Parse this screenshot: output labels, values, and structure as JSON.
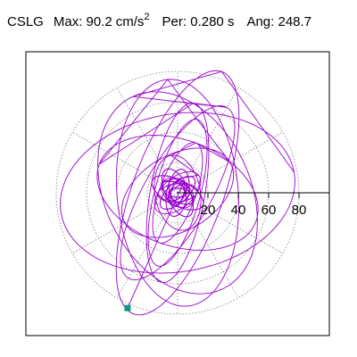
{
  "header": {
    "station": "CSLG",
    "max_label": "Max:",
    "max_value": "90.2",
    "max_unit": "cm/s",
    "max_unit_exp": "2",
    "per_label": "Per:",
    "per_value": "0.280 s",
    "ang_label": "Ang:",
    "ang_value": "248.7"
  },
  "colors": {
    "trace": "#9900cc",
    "grid": "#808080",
    "frame": "#000000",
    "end_marker": "#109980"
  },
  "chart_data": {
    "type": "line",
    "title": "",
    "xlabel": "",
    "ylabel": "",
    "radial_ticks": [
      "20",
      "40",
      "60",
      "80"
    ],
    "radial_tick_values": [
      20,
      40,
      60,
      80
    ],
    "grid": "polar-dotted",
    "xlim": [
      -95,
      95
    ],
    "ylim": [
      -95,
      95
    ],
    "max_amplitude": 90.2,
    "max_angle_deg": 248.7,
    "orbit_ellipses": [
      {
        "semi_a": 78,
        "semi_b": 52,
        "angle_deg": 10
      },
      {
        "semi_a": 85,
        "semi_b": 30,
        "angle_deg": 70
      },
      {
        "semi_a": 70,
        "semi_b": 48,
        "angle_deg": 115
      },
      {
        "semi_a": 65,
        "semi_b": 22,
        "angle_deg": 60
      },
      {
        "semi_a": 60,
        "semi_b": 18,
        "angle_deg": 80
      },
      {
        "semi_a": 55,
        "semi_b": 35,
        "angle_deg": 160
      },
      {
        "semi_a": 75,
        "semi_b": 40,
        "angle_deg": 95
      },
      {
        "semi_a": 50,
        "semi_b": 15,
        "angle_deg": 75
      },
      {
        "semi_a": 40,
        "semi_b": 25,
        "angle_deg": 30
      },
      {
        "semi_a": 35,
        "semi_b": 12,
        "angle_deg": 70
      },
      {
        "semi_a": 25,
        "semi_b": 15,
        "angle_deg": 100
      },
      {
        "semi_a": 18,
        "semi_b": 10,
        "angle_deg": 40
      },
      {
        "semi_a": 12,
        "semi_b": 8,
        "angle_deg": 140
      },
      {
        "semi_a": 8,
        "semi_b": 5,
        "angle_deg": 60
      }
    ],
    "end_point": {
      "x": -33,
      "y": -76
    }
  }
}
